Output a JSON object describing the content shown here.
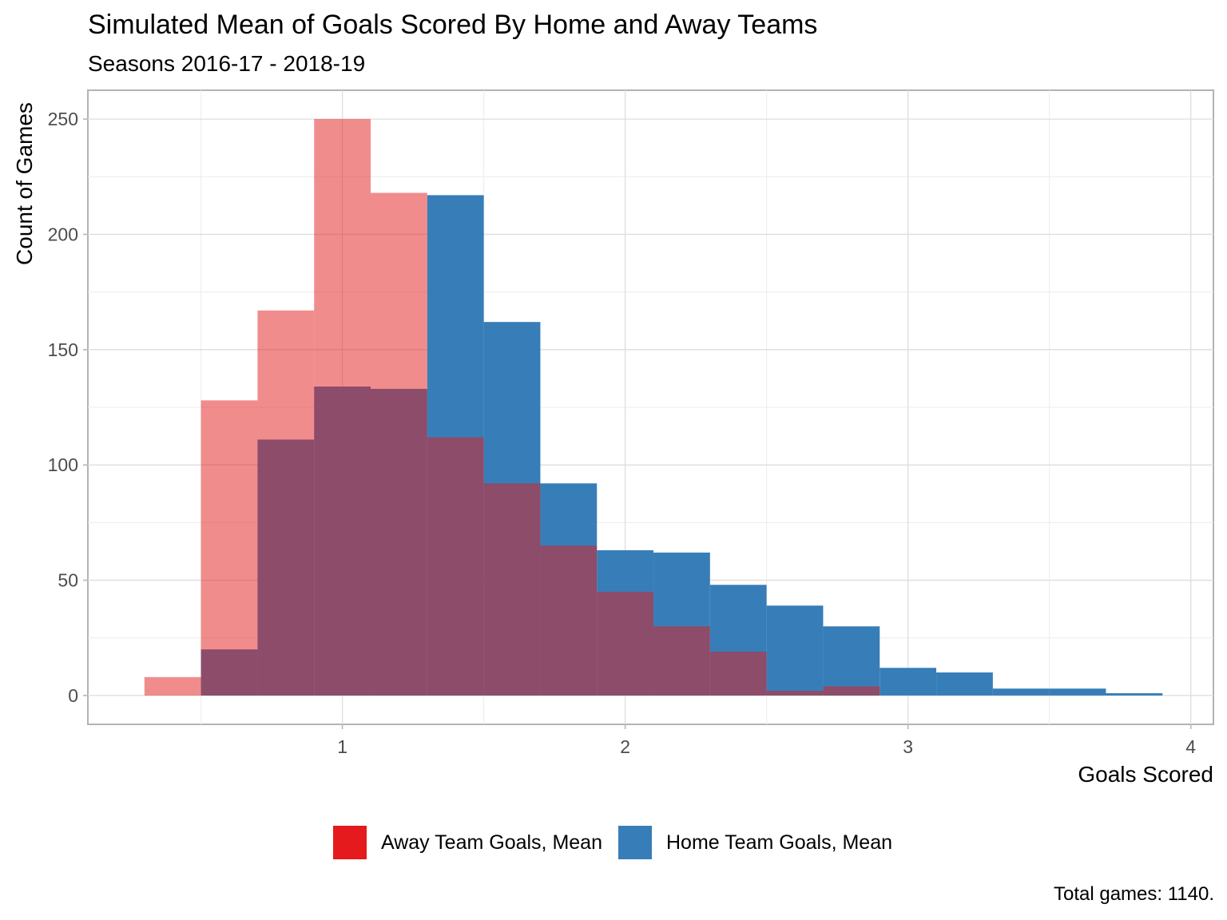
{
  "chart_data": {
    "type": "bar",
    "title": "Simulated Mean of Goals Scored By Home and Away Teams",
    "subtitle": "Seasons 2016-17 - 2018-19",
    "xlabel": "Goals Scored",
    "ylabel": "Count of Games",
    "caption": "Total games: 1140.",
    "xlim": [
      0.1,
      4.08
    ],
    "ylim": [
      -12.5,
      262.5
    ],
    "x_ticks": [
      1,
      2,
      3,
      4
    ],
    "y_ticks": [
      0,
      50,
      100,
      150,
      200,
      250
    ],
    "grid": true,
    "legend_position": "bottom",
    "bin_width": 0.2,
    "series": [
      {
        "name": "Away Team Goals, Mean",
        "color": "#E41A1C",
        "opacity": 0.5,
        "bins": [
          {
            "x": 0.4,
            "count": 8
          },
          {
            "x": 0.6,
            "count": 128
          },
          {
            "x": 0.8,
            "count": 167
          },
          {
            "x": 1.0,
            "count": 250
          },
          {
            "x": 1.2,
            "count": 218
          },
          {
            "x": 1.4,
            "count": 112
          },
          {
            "x": 1.6,
            "count": 92
          },
          {
            "x": 1.8,
            "count": 65
          },
          {
            "x": 2.0,
            "count": 45
          },
          {
            "x": 2.2,
            "count": 30
          },
          {
            "x": 2.4,
            "count": 19
          },
          {
            "x": 2.6,
            "count": 2
          },
          {
            "x": 2.8,
            "count": 4
          }
        ]
      },
      {
        "name": "Home Team Goals, Mean",
        "color": "#377EB8",
        "opacity": 1,
        "bins": [
          {
            "x": 0.6,
            "count": 20
          },
          {
            "x": 0.8,
            "count": 111
          },
          {
            "x": 1.0,
            "count": 134
          },
          {
            "x": 1.2,
            "count": 133
          },
          {
            "x": 1.4,
            "count": 217
          },
          {
            "x": 1.6,
            "count": 162
          },
          {
            "x": 1.8,
            "count": 92
          },
          {
            "x": 2.0,
            "count": 63
          },
          {
            "x": 2.2,
            "count": 62
          },
          {
            "x": 2.4,
            "count": 48
          },
          {
            "x": 2.6,
            "count": 39
          },
          {
            "x": 2.8,
            "count": 30
          },
          {
            "x": 3.0,
            "count": 12
          },
          {
            "x": 3.2,
            "count": 10
          },
          {
            "x": 3.4,
            "count": 3
          },
          {
            "x": 3.6,
            "count": 3
          },
          {
            "x": 3.8,
            "count": 1
          }
        ]
      }
    ]
  }
}
